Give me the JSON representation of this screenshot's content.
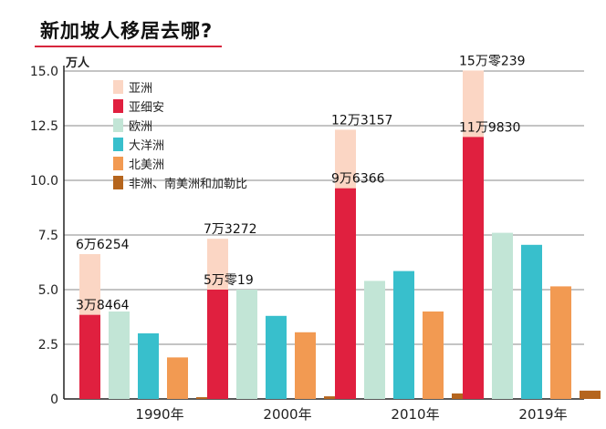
{
  "chart_data": {
    "type": "bar",
    "title": "新加坡人移居去哪?",
    "ylabel": "万人",
    "xlabel": "",
    "ylim": [
      0,
      15.0
    ],
    "yticks": [
      "0",
      "2.5",
      "5.0",
      "7.5",
      "10.0",
      "12.5",
      "15.0"
    ],
    "categories": [
      "1990年",
      "2000年",
      "2010年",
      "2019年"
    ],
    "grid": true,
    "legend_position": "top-left",
    "colors": {
      "亚洲": "#fbd6c4",
      "亚细安": "#e0203f",
      "欧洲": "#c2e5d6",
      "大洋洲": "#38bfcc",
      "北美洲": "#f29a52",
      "非洲、南美洲和加勒比": "#b5651d"
    },
    "series": [
      {
        "name": "亚洲",
        "values": [
          6.6254,
          7.3272,
          12.3157,
          15.0239
        ],
        "stacked_behind": "亚细安"
      },
      {
        "name": "亚细安",
        "values": [
          3.8464,
          5.0019,
          9.6366,
          11.983
        ]
      },
      {
        "name": "欧洲",
        "values": [
          4.0,
          5.0,
          5.4,
          7.6
        ]
      },
      {
        "name": "大洋洲",
        "values": [
          3.0,
          3.8,
          5.85,
          7.05
        ]
      },
      {
        "name": "北美洲",
        "values": [
          1.9,
          3.05,
          4.0,
          5.15
        ]
      },
      {
        "name": "非洲、南美洲和加勒比",
        "values": [
          0.08,
          0.12,
          0.25,
          0.38
        ]
      }
    ],
    "annotations": [
      {
        "category": "1990年",
        "series": "亚洲",
        "text": "6万6254"
      },
      {
        "category": "1990年",
        "series": "亚细安",
        "text": "3万8464"
      },
      {
        "category": "2000年",
        "series": "亚洲",
        "text": "7万3272"
      },
      {
        "category": "2000年",
        "series": "亚细安",
        "text": "5万零19"
      },
      {
        "category": "2010年",
        "series": "亚洲",
        "text": "12万3157"
      },
      {
        "category": "2010年",
        "series": "亚细安",
        "text": "9万6366"
      },
      {
        "category": "2019年",
        "series": "亚洲",
        "text": "15万零239"
      },
      {
        "category": "2019年",
        "series": "亚细安",
        "text": "11万9830"
      }
    ]
  }
}
